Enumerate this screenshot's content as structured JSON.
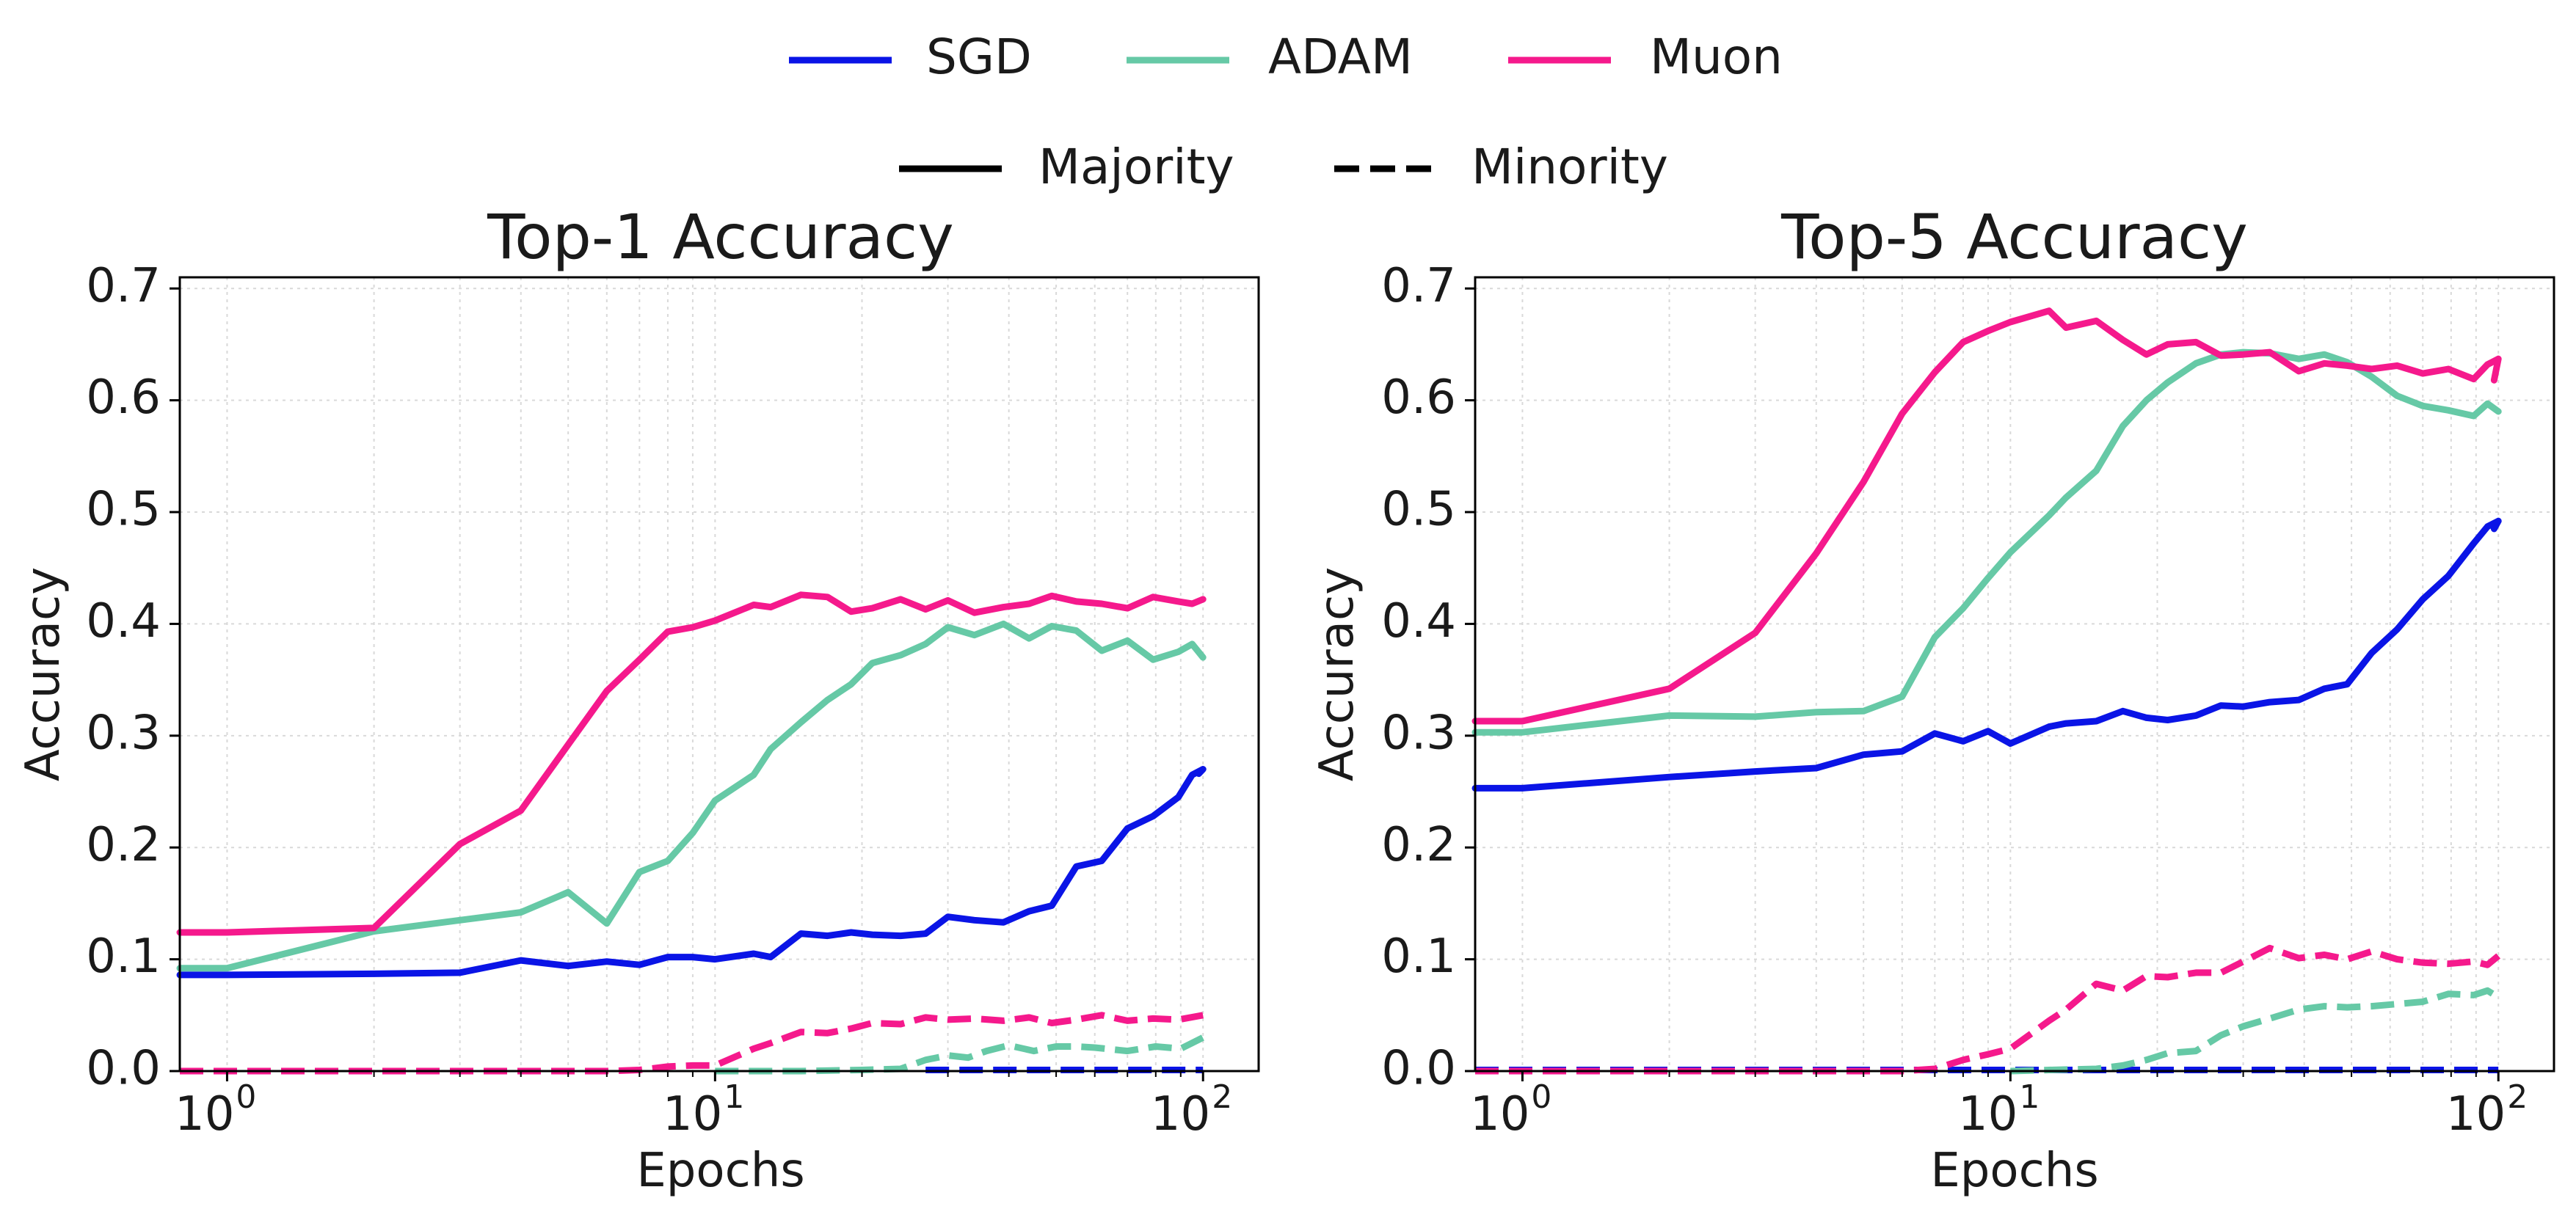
{
  "legend": {
    "optimizers": [
      {
        "name": "SGD",
        "color": "#0a14e6"
      },
      {
        "name": "ADAM",
        "color": "#66c9a6"
      },
      {
        "name": "Muon",
        "color": "#f5198c"
      }
    ],
    "styles": [
      {
        "name": "Majority",
        "dash": "solid"
      },
      {
        "name": "Minority",
        "dash": "dashed"
      }
    ]
  },
  "chart_data": [
    {
      "type": "line",
      "title": "Top-1 Accuracy",
      "xlabel": "Epochs",
      "ylabel": "Accuracy",
      "xscale": "log",
      "xlim": [
        0.8,
        130
      ],
      "ylim": [
        0,
        0.71
      ],
      "grid": true,
      "yticks": [
        "0.0",
        "0.1",
        "0.2",
        "0.3",
        "0.4",
        "0.5",
        "0.6",
        "0.7"
      ],
      "xticks": [
        {
          "base": "10",
          "exp": "0"
        },
        {
          "base": "10",
          "exp": "1"
        },
        {
          "base": "10",
          "exp": "2"
        }
      ],
      "series": [
        {
          "name": "SGD Majority",
          "optimizer": "SGD",
          "style": "solid",
          "color": "#0a14e6",
          "x": [
            0.8,
            1,
            2,
            3,
            4,
            5,
            6,
            7,
            8,
            9,
            10,
            12,
            13,
            15,
            17,
            19,
            21,
            24,
            27,
            30,
            34,
            39,
            44,
            49,
            55,
            62,
            70,
            79,
            89,
            95,
            100,
            98
          ],
          "y": [
            0.086,
            0.086,
            0.087,
            0.088,
            0.099,
            0.094,
            0.098,
            0.095,
            0.102,
            0.102,
            0.1,
            0.105,
            0.102,
            0.123,
            0.121,
            0.124,
            0.122,
            0.121,
            0.123,
            0.138,
            0.135,
            0.133,
            0.143,
            0.148,
            0.183,
            0.188,
            0.217,
            0.228,
            0.245,
            0.265,
            0.27,
            0.266
          ]
        },
        {
          "name": "SGD Minority",
          "optimizer": "SGD",
          "style": "dashed",
          "color": "#0a14e6",
          "x": [
            27,
            40,
            60,
            80,
            100
          ],
          "y": [
            0.001,
            0.001,
            0.001,
            0.001,
            0.001
          ]
        },
        {
          "name": "ADAM Majority",
          "optimizer": "ADAM",
          "style": "solid",
          "color": "#66c9a6",
          "x": [
            0.8,
            1,
            2,
            3,
            4,
            5,
            6,
            7,
            8,
            9,
            10,
            12,
            13,
            15,
            17,
            19,
            21,
            24,
            27,
            30,
            34,
            39,
            44,
            49,
            55,
            62,
            70,
            79,
            89,
            95,
            100
          ],
          "y": [
            0.092,
            0.092,
            0.125,
            0.135,
            0.142,
            0.16,
            0.132,
            0.178,
            0.188,
            0.213,
            0.242,
            0.265,
            0.288,
            0.312,
            0.332,
            0.346,
            0.365,
            0.372,
            0.382,
            0.397,
            0.39,
            0.4,
            0.387,
            0.398,
            0.394,
            0.376,
            0.385,
            0.368,
            0.375,
            0.382,
            0.37
          ]
        },
        {
          "name": "ADAM Minority",
          "optimizer": "ADAM",
          "style": "dashed",
          "color": "#66c9a6",
          "x": [
            10,
            15,
            20,
            24,
            27,
            30,
            33,
            36,
            40,
            45,
            50,
            55,
            60,
            70,
            80,
            90,
            100
          ],
          "y": [
            0.0,
            0.0,
            0.001,
            0.002,
            0.01,
            0.014,
            0.012,
            0.018,
            0.023,
            0.018,
            0.022,
            0.022,
            0.021,
            0.018,
            0.022,
            0.02,
            0.03
          ]
        },
        {
          "name": "Muon Majority",
          "optimizer": "Muon",
          "style": "solid",
          "color": "#f5198c",
          "x": [
            0.8,
            1,
            2,
            3,
            4,
            5,
            6,
            7,
            8,
            9,
            10,
            12,
            13,
            15,
            17,
            19,
            21,
            24,
            27,
            30,
            34,
            39,
            44,
            49,
            55,
            62,
            70,
            79,
            89,
            95,
            100
          ],
          "y": [
            0.124,
            0.124,
            0.128,
            0.203,
            0.233,
            0.292,
            0.34,
            0.368,
            0.393,
            0.397,
            0.403,
            0.417,
            0.415,
            0.426,
            0.424,
            0.411,
            0.414,
            0.422,
            0.413,
            0.421,
            0.41,
            0.415,
            0.418,
            0.425,
            0.42,
            0.418,
            0.414,
            0.424,
            0.42,
            0.418,
            0.422
          ]
        },
        {
          "name": "Muon Minority",
          "optimizer": "Muon",
          "style": "dashed",
          "color": "#f5198c",
          "x": [
            0.8,
            1,
            2,
            3,
            4,
            5,
            6,
            7,
            8,
            9,
            10,
            12,
            13,
            15,
            17,
            19,
            21,
            24,
            27,
            30,
            34,
            39,
            44,
            49,
            55,
            62,
            70,
            79,
            89,
            100
          ],
          "y": [
            0.0,
            0.0,
            0.0,
            0.0,
            0.0,
            0.0,
            0.0,
            0.001,
            0.004,
            0.005,
            0.005,
            0.02,
            0.025,
            0.035,
            0.034,
            0.038,
            0.043,
            0.042,
            0.048,
            0.046,
            0.047,
            0.045,
            0.048,
            0.043,
            0.046,
            0.05,
            0.045,
            0.047,
            0.046,
            0.05
          ]
        }
      ]
    },
    {
      "type": "line",
      "title": "Top-5 Accuracy",
      "xlabel": "Epochs",
      "ylabel": "Accuracy",
      "xscale": "log",
      "xlim": [
        0.8,
        130
      ],
      "ylim": [
        0,
        0.71
      ],
      "grid": true,
      "yticks": [
        "0.0",
        "0.1",
        "0.2",
        "0.3",
        "0.4",
        "0.5",
        "0.6",
        "0.7"
      ],
      "xticks": [
        {
          "base": "10",
          "exp": "0"
        },
        {
          "base": "10",
          "exp": "1"
        },
        {
          "base": "10",
          "exp": "2"
        }
      ],
      "series": [
        {
          "name": "SGD Majority",
          "optimizer": "SGD",
          "style": "solid",
          "color": "#0a14e6",
          "x": [
            0.8,
            1,
            2,
            3,
            4,
            5,
            6,
            7,
            8,
            9,
            10,
            12,
            13,
            15,
            17,
            19,
            21,
            24,
            27,
            30,
            34,
            39,
            44,
            49,
            55,
            62,
            70,
            79,
            89,
            95,
            100,
            98
          ],
          "y": [
            0.253,
            0.253,
            0.263,
            0.268,
            0.271,
            0.283,
            0.286,
            0.302,
            0.295,
            0.304,
            0.293,
            0.308,
            0.311,
            0.313,
            0.322,
            0.316,
            0.314,
            0.318,
            0.327,
            0.326,
            0.33,
            0.332,
            0.342,
            0.346,
            0.374,
            0.395,
            0.422,
            0.443,
            0.472,
            0.487,
            0.492,
            0.485
          ]
        },
        {
          "name": "SGD Minority",
          "optimizer": "SGD",
          "style": "dashed",
          "color": "#0a14e6",
          "x": [
            0.8,
            1,
            5,
            10,
            20,
            50,
            100
          ],
          "y": [
            0.001,
            0.001,
            0.001,
            0.001,
            0.001,
            0.001,
            0.001
          ]
        },
        {
          "name": "ADAM Majority",
          "optimizer": "ADAM",
          "style": "solid",
          "color": "#66c9a6",
          "x": [
            0.8,
            1,
            2,
            3,
            4,
            5,
            6,
            7,
            8,
            9,
            10,
            12,
            13,
            15,
            17,
            19,
            21,
            24,
            27,
            30,
            34,
            39,
            44,
            49,
            55,
            62,
            70,
            79,
            89,
            95,
            100
          ],
          "y": [
            0.303,
            0.303,
            0.318,
            0.317,
            0.321,
            0.322,
            0.335,
            0.388,
            0.414,
            0.441,
            0.464,
            0.497,
            0.513,
            0.537,
            0.577,
            0.6,
            0.616,
            0.633,
            0.641,
            0.643,
            0.642,
            0.637,
            0.641,
            0.634,
            0.621,
            0.604,
            0.595,
            0.591,
            0.586,
            0.597,
            0.59
          ]
        },
        {
          "name": "ADAM Minority",
          "optimizer": "ADAM",
          "style": "dashed",
          "color": "#66c9a6",
          "x": [
            10,
            12,
            15,
            17,
            19,
            21,
            24,
            27,
            30,
            34,
            39,
            44,
            49,
            55,
            62,
            70,
            79,
            89,
            95,
            100
          ],
          "y": [
            0.0,
            0.001,
            0.002,
            0.005,
            0.01,
            0.016,
            0.018,
            0.032,
            0.04,
            0.047,
            0.055,
            0.058,
            0.057,
            0.058,
            0.06,
            0.062,
            0.069,
            0.068,
            0.072,
            0.066
          ]
        },
        {
          "name": "Muon Majority",
          "optimizer": "Muon",
          "style": "solid",
          "color": "#f5198c",
          "x": [
            0.8,
            1,
            2,
            3,
            4,
            5,
            6,
            7,
            8,
            9,
            10,
            12,
            13,
            15,
            17,
            19,
            21,
            24,
            27,
            30,
            34,
            39,
            44,
            49,
            55,
            62,
            70,
            79,
            89,
            95,
            100,
            98
          ],
          "y": [
            0.313,
            0.313,
            0.342,
            0.392,
            0.463,
            0.527,
            0.588,
            0.625,
            0.652,
            0.662,
            0.67,
            0.68,
            0.665,
            0.671,
            0.654,
            0.641,
            0.65,
            0.652,
            0.64,
            0.641,
            0.643,
            0.626,
            0.633,
            0.631,
            0.628,
            0.631,
            0.624,
            0.628,
            0.619,
            0.632,
            0.637,
            0.618
          ]
        },
        {
          "name": "Muon Minority",
          "optimizer": "Muon",
          "style": "dashed",
          "color": "#f5198c",
          "x": [
            0.8,
            1,
            2,
            3,
            4,
            5,
            6,
            7,
            8,
            9,
            10,
            12,
            13,
            15,
            17,
            19,
            21,
            24,
            27,
            30,
            34,
            39,
            44,
            49,
            55,
            62,
            70,
            79,
            89,
            95,
            100
          ],
          "y": [
            0.0,
            0.0,
            0.0,
            0.0,
            0.0,
            0.0,
            0.0,
            0.002,
            0.01,
            0.015,
            0.02,
            0.045,
            0.055,
            0.078,
            0.072,
            0.085,
            0.084,
            0.088,
            0.088,
            0.098,
            0.11,
            0.101,
            0.104,
            0.1,
            0.107,
            0.1,
            0.097,
            0.096,
            0.098,
            0.095,
            0.103
          ]
        }
      ]
    }
  ]
}
